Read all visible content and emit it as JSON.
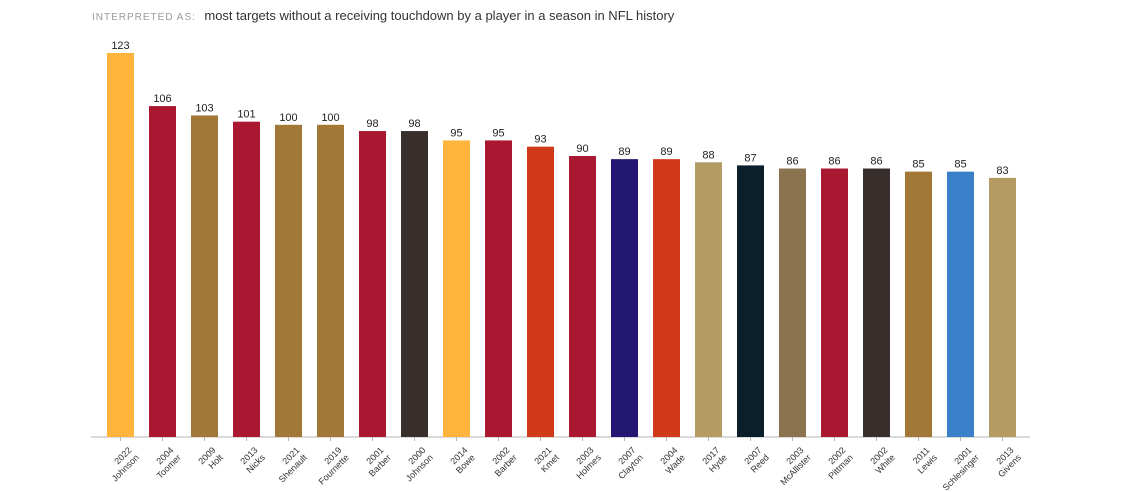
{
  "header": {
    "label": "INTERPRETED AS:",
    "query": "most targets without a receiving touchdown by a player in a season in NFL history"
  },
  "chart_data": {
    "type": "bar",
    "title": "",
    "xlabel": "",
    "ylabel": "",
    "ylim": [
      0,
      123
    ],
    "grid": false,
    "categories": [
      [
        "2022",
        "Johnson"
      ],
      [
        "2004",
        "Toomer"
      ],
      [
        "2009",
        "Holt"
      ],
      [
        "2013",
        "Nicks"
      ],
      [
        "2021",
        "Shenault"
      ],
      [
        "2019",
        "Fournette"
      ],
      [
        "2001",
        "Barber"
      ],
      [
        "2000",
        "Johnson"
      ],
      [
        "2014",
        "Bowe"
      ],
      [
        "2002",
        "Barber"
      ],
      [
        "2021",
        "Kmet"
      ],
      [
        "2003",
        "Holmes"
      ],
      [
        "2007",
        "Clayton"
      ],
      [
        "2004",
        "Wade"
      ],
      [
        "2017",
        "Hyde"
      ],
      [
        "2007",
        "Reed"
      ],
      [
        "2003",
        "McAllister"
      ],
      [
        "2002",
        "Pittman"
      ],
      [
        "2002",
        "White"
      ],
      [
        "2011",
        "Lewis"
      ],
      [
        "2001",
        "Schlesinger"
      ],
      [
        "2013",
        "Givens"
      ]
    ],
    "values": [
      123,
      106,
      103,
      101,
      100,
      100,
      98,
      98,
      95,
      95,
      93,
      90,
      89,
      89,
      88,
      87,
      86,
      86,
      86,
      85,
      85,
      83
    ],
    "colors": [
      "#FFB43C",
      "#A91830",
      "#A17835",
      "#A91830",
      "#A17835",
      "#A17835",
      "#A91830",
      "#382F2D",
      "#FFB43C",
      "#A91830",
      "#D03A18",
      "#A91830",
      "#241773",
      "#D03A18",
      "#B39B63",
      "#0B1F2B",
      "#8C7350",
      "#A91830",
      "#382F2D",
      "#A17835",
      "#3A80C8",
      "#B39B63"
    ]
  }
}
